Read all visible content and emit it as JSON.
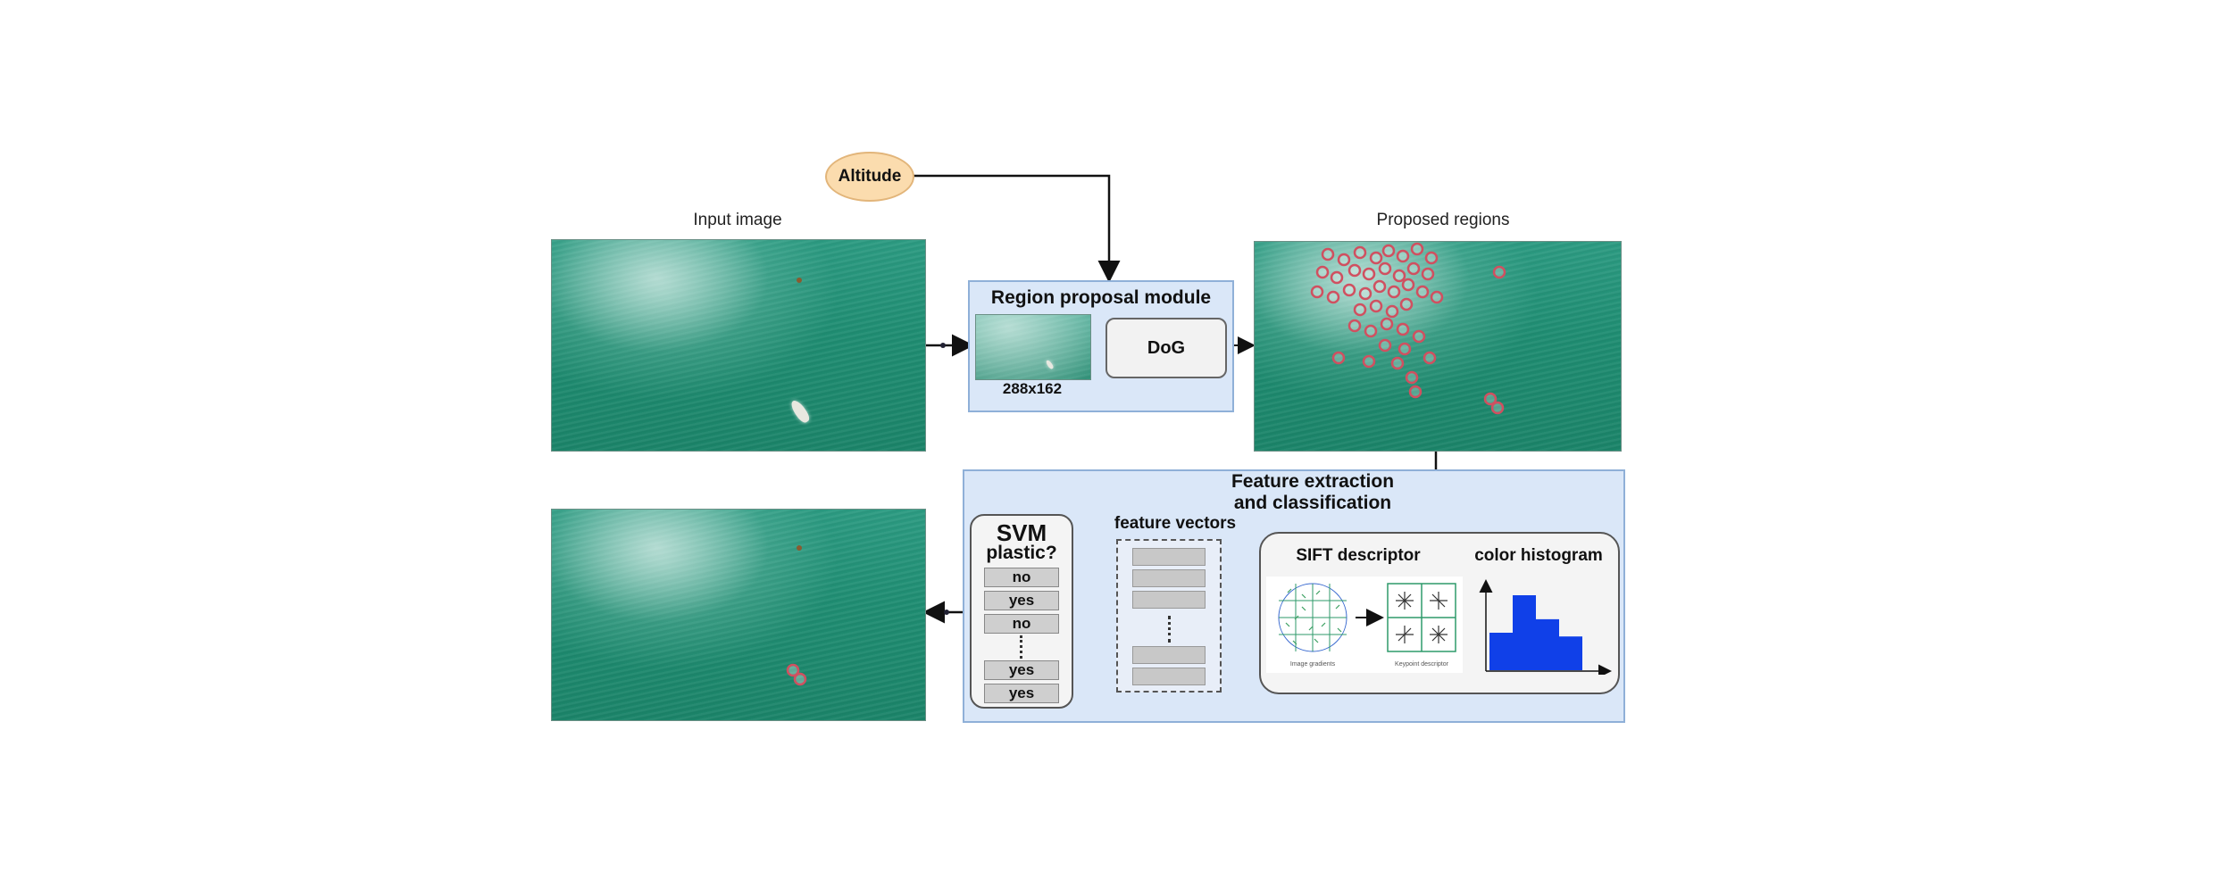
{
  "labels": {
    "altitude": "Altitude",
    "input_image": "Input image",
    "proposed_regions": "Proposed regions",
    "region_proposal_module": "Region proposal module",
    "dog": "DoG",
    "resolution": "288x162",
    "feature_extraction_line1": "Feature extraction",
    "feature_extraction_line2": "and classification",
    "feature_vectors": "feature vectors",
    "svm": "SVM",
    "svm_question": "plastic?",
    "sift_descriptor": "SIFT descriptor",
    "color_histogram": "color histogram",
    "sift_left_caption": "Image gradients",
    "sift_right_caption": "Keypoint descriptor"
  },
  "svm_outputs": [
    "no",
    "yes",
    "no",
    "yes",
    "yes"
  ],
  "colors": {
    "panel_fill": "#dae7f8",
    "panel_border": "#8fb0d8",
    "altitude_fill": "#fbdcae",
    "histogram_bar": "#1040e8",
    "region_marker": "#d05060",
    "sea": "#1f8d72"
  },
  "histogram": {
    "relative_bin_heights": [
      0.5,
      1.0,
      0.68,
      0.45
    ]
  }
}
